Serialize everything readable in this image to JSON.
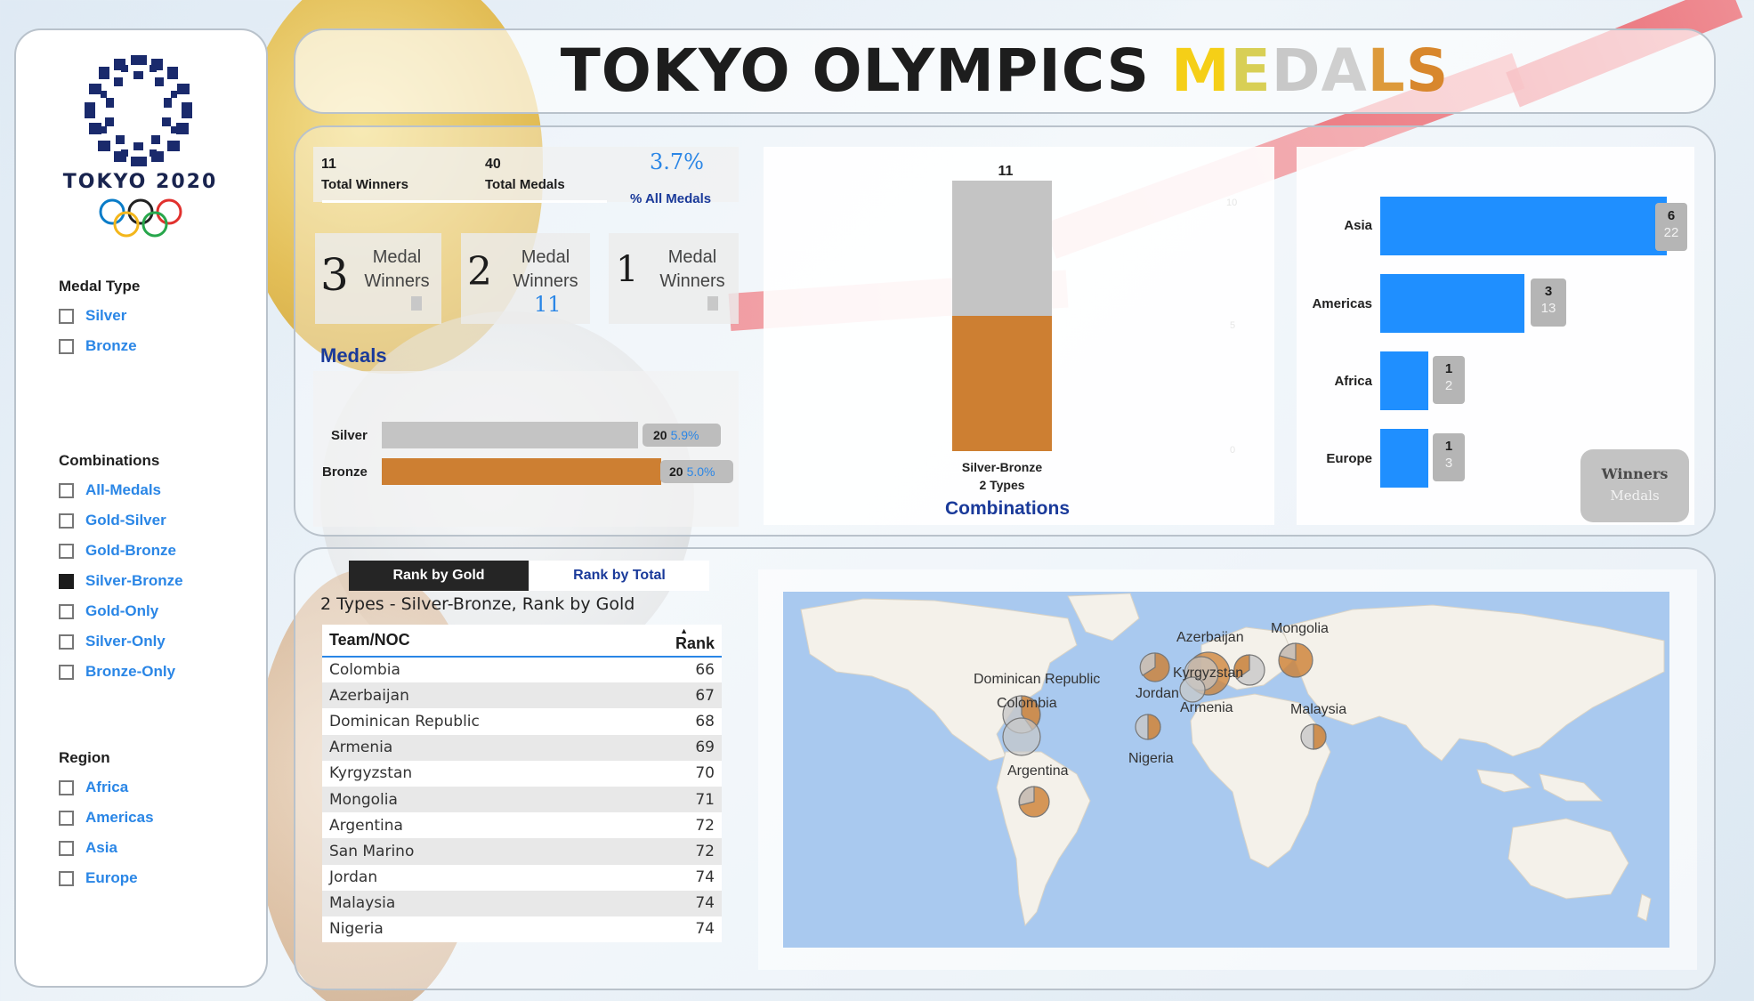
{
  "title": {
    "prefix": "TOKYO OLYMPICS ",
    "m": "M",
    "e": "E",
    "d": "D",
    "a": "A",
    "l": "L",
    "s": "S"
  },
  "sidebar": {
    "logo_text": "TOKYO 2020",
    "medal_type": {
      "title": "Medal Type",
      "items": [
        "Silver",
        "Bronze"
      ]
    },
    "combinations": {
      "title": "Combinations",
      "items": [
        "All-Medals",
        "Gold-Silver",
        "Gold-Bronze",
        "Silver-Bronze",
        "Gold-Only",
        "Silver-Only",
        "Bronze-Only"
      ],
      "selected": "Silver-Bronze"
    },
    "region": {
      "title": "Region",
      "items": [
        "Africa",
        "Americas",
        "Asia",
        "Europe"
      ]
    }
  },
  "kpis": {
    "total_winners": {
      "value": "11",
      "label": "Total Winners"
    },
    "total_medals": {
      "value": "40",
      "label": "Total Medals"
    },
    "pct_all": {
      "value": "3.7%",
      "label": "% All Medals"
    },
    "medal_winners": [
      {
        "count": "3",
        "line1": "Medal",
        "line2": "Winners",
        "value": ""
      },
      {
        "count": "2",
        "line1": "Medal",
        "line2": "Winners",
        "value": "11"
      },
      {
        "count": "1",
        "line1": "Medal",
        "line2": "Winners",
        "value": ""
      }
    ]
  },
  "medals": {
    "title": "Medals",
    "rows": [
      {
        "label": "Silver",
        "value": "20",
        "pct": "5.9%",
        "color": "#c4c4c4"
      },
      {
        "label": "Bronze",
        "value": "20",
        "pct": "5.0%",
        "color": "#cd7f32"
      }
    ]
  },
  "combinations_chart": {
    "title": "Combinations",
    "top_label": "11",
    "category": "Silver-Bronze",
    "sub": "2 Types",
    "ticks": [
      "10",
      "5",
      "0"
    ]
  },
  "region_chart": {
    "rows": [
      {
        "region": "Asia",
        "winners": "6",
        "medals": "22"
      },
      {
        "region": "Americas",
        "winners": "3",
        "medals": "13"
      },
      {
        "region": "Africa",
        "winners": "1",
        "medals": "2"
      },
      {
        "region": "Europe",
        "winners": "1",
        "medals": "3"
      }
    ],
    "legend": {
      "winners": "Winners",
      "medals": "Medals"
    }
  },
  "rank_tabs": {
    "by_gold": "Rank by Gold",
    "by_total": "Rank by Total"
  },
  "table": {
    "caption": "2 Types - Silver-Bronze, Rank by Gold",
    "col_team": "Team/NOC",
    "col_rank": "Rank",
    "rows": [
      [
        "Colombia",
        "66"
      ],
      [
        "Azerbaijan",
        "67"
      ],
      [
        "Dominican Republic",
        "68"
      ],
      [
        "Armenia",
        "69"
      ],
      [
        "Kyrgyzstan",
        "70"
      ],
      [
        "Mongolia",
        "71"
      ],
      [
        "Argentina",
        "72"
      ],
      [
        "San Marino",
        "72"
      ],
      [
        "Jordan",
        "74"
      ],
      [
        "Malaysia",
        "74"
      ],
      [
        "Nigeria",
        "74"
      ]
    ]
  },
  "map": {
    "labels": {
      "dominican_republic": "Dominican Republic",
      "colombia": "Colombia",
      "argentina": "Argentina",
      "azerbaijan": "Azerbaijan",
      "kyrgyzstan": "Kyrgyzstan",
      "armenia": "Armenia",
      "jordan": "Jordan",
      "nigeria": "Nigeria",
      "mongolia": "Mongolia",
      "malaysia": "Malaysia"
    }
  },
  "colors": {
    "accent": "#2a86e6",
    "bar_blue": "#1f8fff",
    "silver": "#c4c4c4",
    "bronze": "#cd7f32",
    "navy": "#1a3a9a"
  }
}
